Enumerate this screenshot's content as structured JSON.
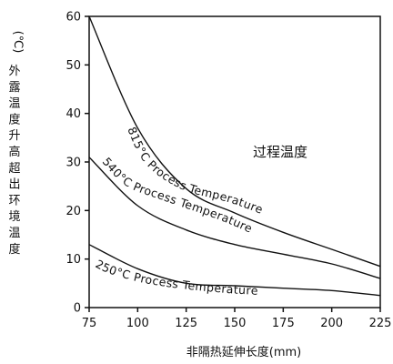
{
  "chart_data": {
    "type": "line",
    "x": [
      75,
      100,
      125,
      150,
      175,
      200,
      225
    ],
    "xlim": [
      75,
      225
    ],
    "ylim": [
      0,
      60
    ],
    "x_ticks": [
      "75",
      "100",
      "125",
      "150",
      "175",
      "200",
      "225"
    ],
    "y_ticks": [
      "0",
      "10",
      "20",
      "30",
      "40",
      "50",
      "60"
    ],
    "xlabel": "非隔热延伸长度(mm)",
    "ylabel_unit": "(℃)",
    "ylabel": "外露温度升高超出环境温度",
    "inner_title": "过程温度",
    "grid": false,
    "series": [
      {
        "name": "815°C  Process  Temperature",
        "values": [
          60,
          37,
          24.5,
          19.5,
          15.5,
          12,
          8.5
        ]
      },
      {
        "name": "540°C  Process  Temperature",
        "values": [
          31,
          21,
          16,
          13,
          11,
          9,
          6
        ]
      },
      {
        "name": "250°C  Process  Temperature",
        "values": [
          13,
          8,
          5,
          4.5,
          4,
          3.5,
          2.5
        ]
      }
    ]
  }
}
